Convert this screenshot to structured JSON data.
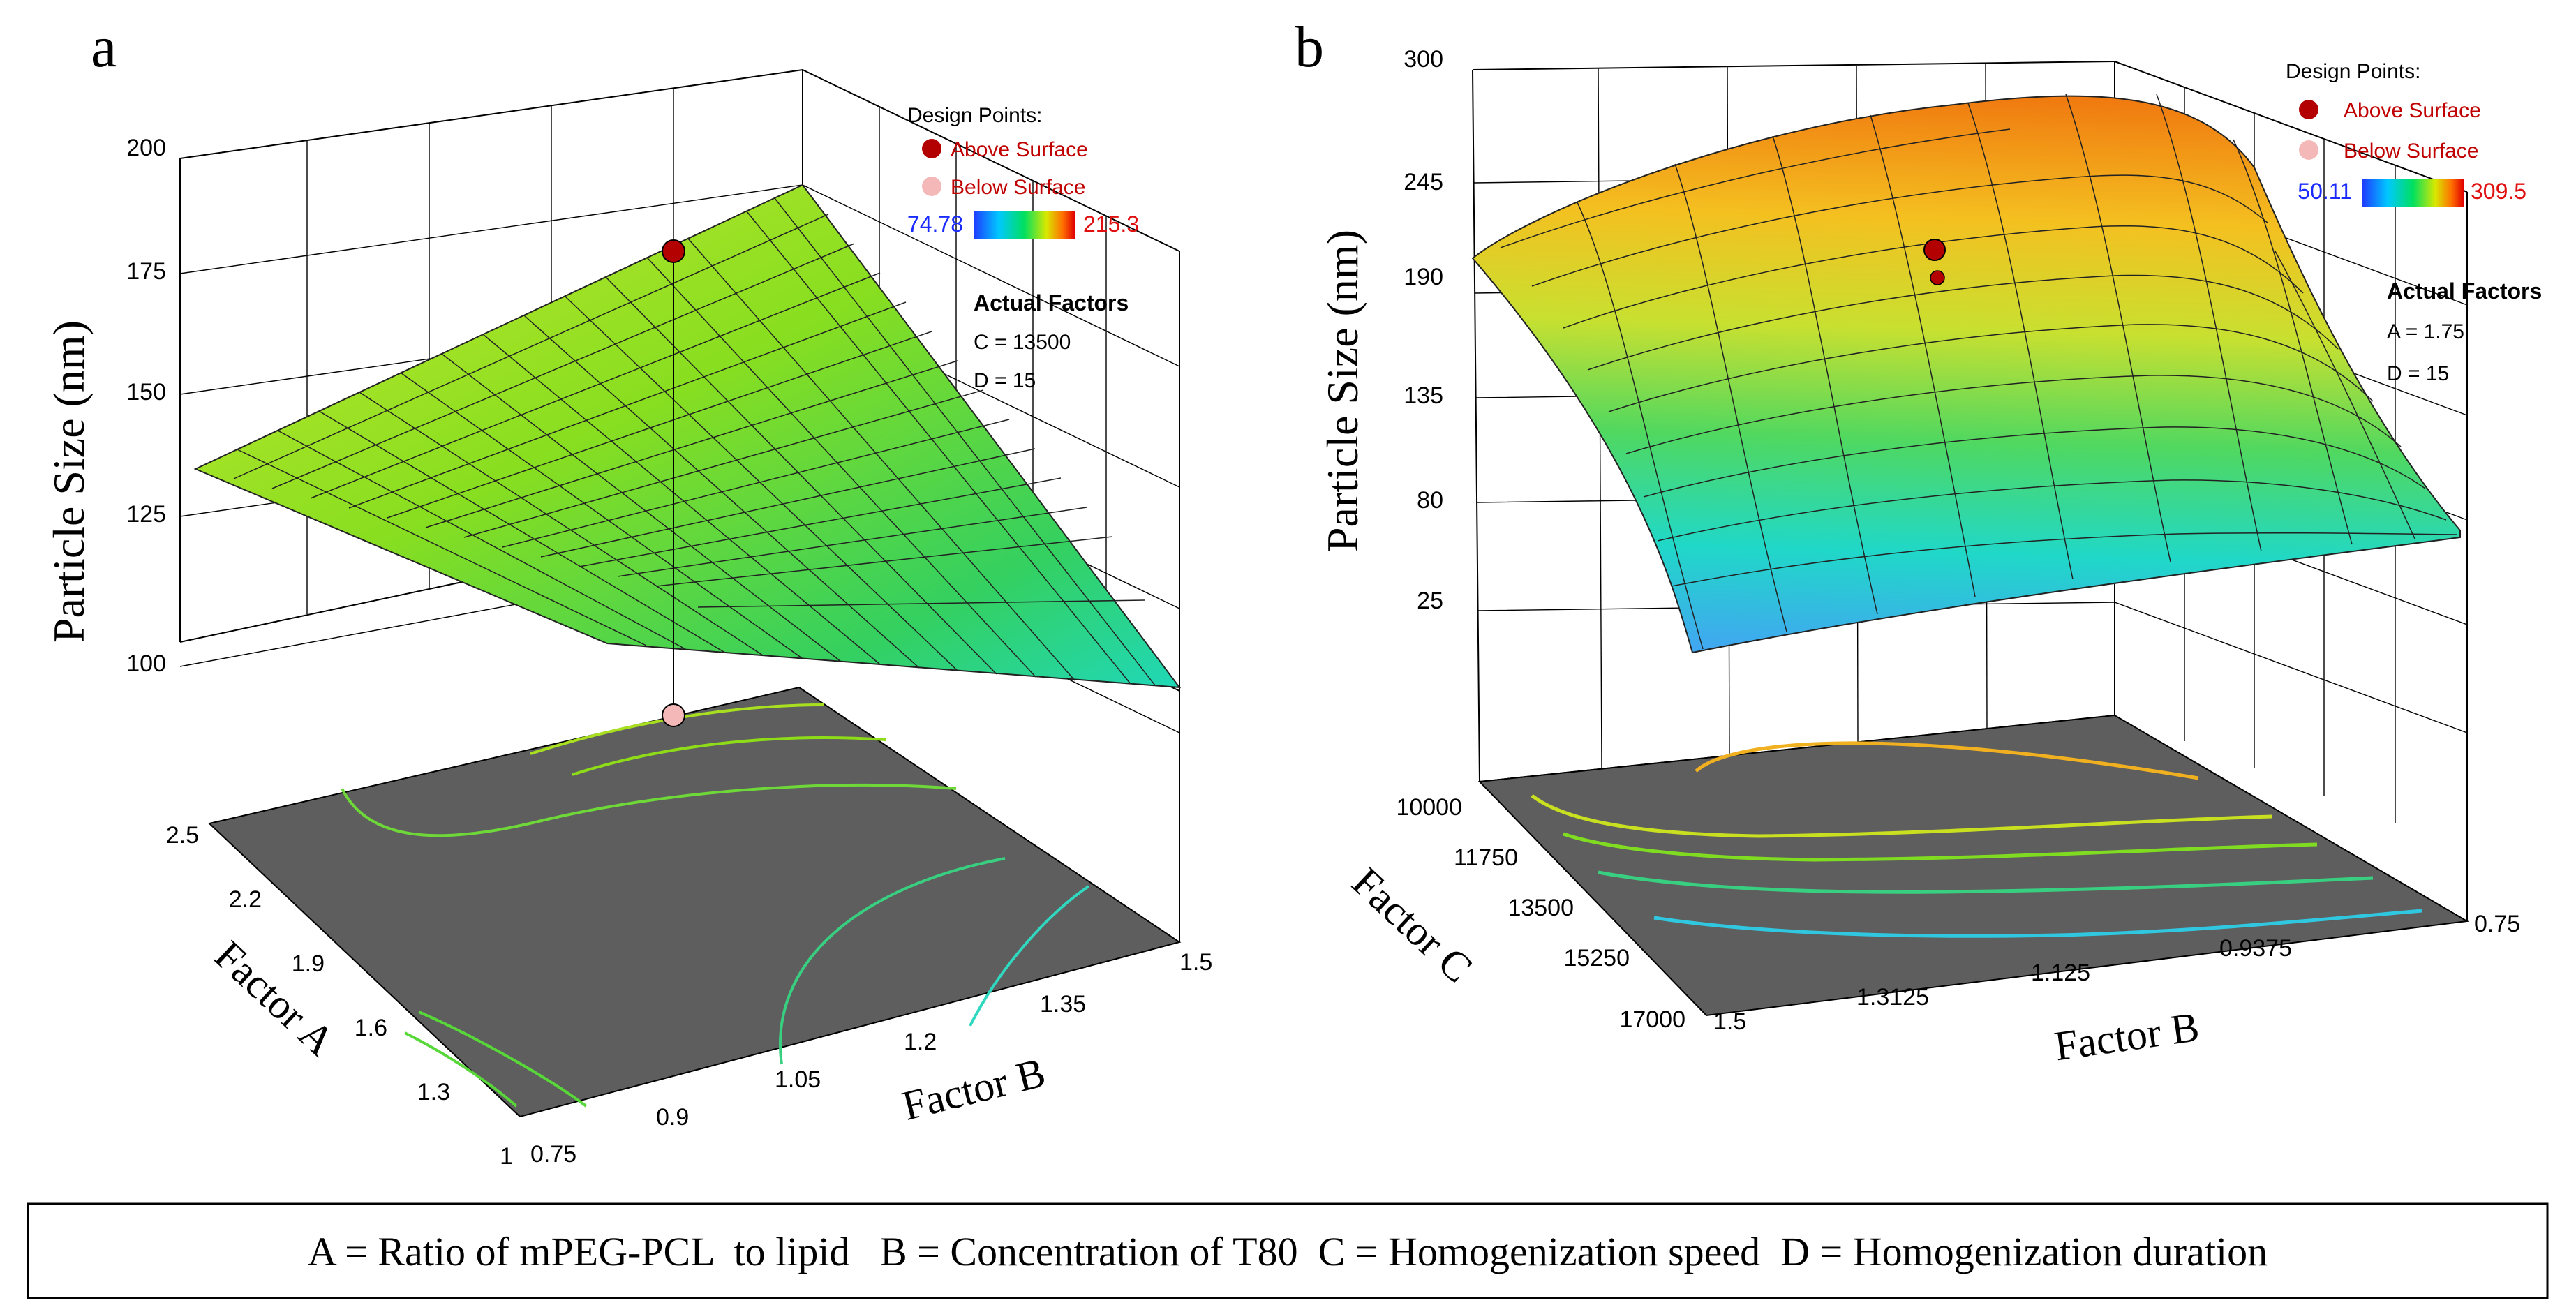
{
  "caption": "A = Ratio of mPEG-PCL  to lipid   B = Concentration of T80  C = Homogenization speed  D = Homogenization duration",
  "legend": {
    "design_points_title": "Design Points:",
    "above_label": "Above Surface",
    "below_label": "Below Surface",
    "actual_factors_title": "Actual Factors"
  },
  "colors": {
    "above_point": "#b30000",
    "below_point": "#f4b8b8",
    "floor": "#5e5e5e",
    "gradient": [
      "#1f3bff",
      "#00c8ff",
      "#00e060",
      "#d8e800",
      "#ff7000",
      "#e00000"
    ]
  },
  "chart_data": [
    {
      "type": "surface",
      "panel": "a",
      "zlabel": "Particle Size (nm)",
      "xlabel": "Factor A",
      "ylabel": "Factor B",
      "z_ticks": [
        "100",
        "125",
        "150",
        "175",
        "200"
      ],
      "x_ticks": [
        "1",
        "1.3",
        "1.6",
        "1.9",
        "2.2",
        "2.5"
      ],
      "y_ticks": [
        "0.75",
        "0.9",
        "1.05",
        "1.2",
        "1.35",
        "1.5"
      ],
      "color_min": "74.78",
      "color_max": "215.3",
      "actual_factors": [
        "C = 13500",
        "D = 15"
      ]
    },
    {
      "type": "surface",
      "panel": "b",
      "zlabel": "Particle Size (nm)",
      "xlabel": "Factor C",
      "ylabel": "Factor B",
      "z_ticks": [
        "25",
        "80",
        "135",
        "190",
        "245",
        "300"
      ],
      "x_ticks": [
        "10000",
        "11750",
        "13500",
        "15250",
        "17000"
      ],
      "y_ticks": [
        "1.5",
        "1.3125",
        "1.125",
        "0.9375",
        "0.75"
      ],
      "color_min": "50.11",
      "color_max": "309.5",
      "actual_factors": [
        "A = 1.75",
        "D = 15"
      ]
    }
  ]
}
